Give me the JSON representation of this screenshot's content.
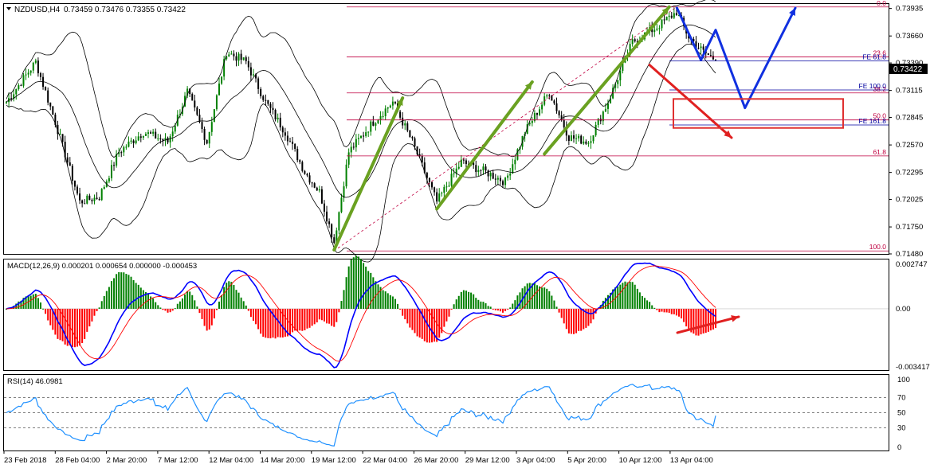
{
  "header": {
    "symbol": "NZDUSD,H4",
    "ohlc": "0.73459 0.73476 0.73355 0.73422"
  },
  "price_panel": {
    "y_ticks": [
      "0.73935",
      "0.73660",
      "0.73390",
      "0.73115",
      "0.72845",
      "0.72570",
      "0.72295",
      "0.72025",
      "0.71750",
      "0.71480"
    ],
    "current_price": "0.73422",
    "fib_levels": [
      {
        "label": "0.0",
        "price": 0.7395,
        "color": "#c00040"
      },
      {
        "label": "23.6",
        "price": 0.7345,
        "color": "#c00040"
      },
      {
        "label": "38.2",
        "price": 0.7309,
        "color": "#c00040"
      },
      {
        "label": "50.0",
        "price": 0.7282,
        "color": "#c00040"
      },
      {
        "label": "61.8",
        "price": 0.7246,
        "color": "#c00040"
      },
      {
        "label": "100.0",
        "price": 0.7151,
        "color": "#c00040"
      }
    ],
    "fe_levels": [
      {
        "label": "FE 61.8",
        "price": 0.7341,
        "color": "#0000a0"
      },
      {
        "label": "FE 100.0",
        "price": 0.7312,
        "color": "#0000a0"
      },
      {
        "label": "FE 161.8",
        "price": 0.7277,
        "color": "#0000a0"
      }
    ]
  },
  "macd_panel": {
    "label": "MACD(12,26,9) 0.000201 0.000654 0.000000 -0.000453",
    "y_ticks": [
      "0.002747",
      "0.00",
      "-0.003417"
    ]
  },
  "rsi_panel": {
    "label": "RSI(14) 46.0981",
    "y_ticks": [
      "70",
      "50",
      "30"
    ],
    "y_tick_values": [
      70,
      50,
      30
    ],
    "top_label": "100",
    "bottom_label": "0"
  },
  "x_axis": {
    "labels": [
      "23 Feb 2018",
      "28 Feb 04:00",
      "2 Mar 20:00",
      "7 Mar 12:00",
      "12 Mar 04:00",
      "14 Mar 20:00",
      "19 Mar 12:00",
      "22 Mar 04:00",
      "26 Mar 20:00",
      "29 Mar 12:00",
      "3 Apr 04:00",
      "5 Apr 20:00",
      "10 Apr 12:00",
      "13 Apr 04:00"
    ]
  },
  "colors": {
    "bull": "#008000",
    "bear": "#000000",
    "bollinger": "#000000",
    "macd_line": "#0000ff",
    "signal_line": "#ff0000",
    "hist_pos": "#008000",
    "hist_neg": "#ff0000",
    "rsi": "#1e90ff",
    "green_arrow": "#6aa121",
    "blue_arrow": "#1030e0",
    "red_arrow": "#e02020",
    "box": "#e03030"
  },
  "chart_data": {
    "type": "line",
    "title": "NZDUSD,H4",
    "series": [
      {
        "name": "NZDUSD",
        "x": [
          "23 Feb 2018",
          "28 Feb 04:00",
          "2 Mar 20:00",
          "7 Mar 12:00",
          "12 Mar 04:00",
          "14 Mar 20:00",
          "19 Mar 12:00",
          "22 Mar 04:00",
          "26 Mar 20:00",
          "29 Mar 12:00",
          "3 Apr 04:00",
          "5 Apr 20:00",
          "10 Apr 12:00",
          "13 Apr 04:00"
        ],
        "values": [
          0.73,
          0.72,
          0.724,
          0.727,
          0.733,
          0.727,
          0.716,
          0.725,
          0.728,
          0.723,
          0.727,
          0.727,
          0.738,
          0.7342
        ]
      }
    ],
    "anchors": [
      [
        0,
        0.73
      ],
      [
        12,
        0.734
      ],
      [
        20,
        0.728
      ],
      [
        30,
        0.72
      ],
      [
        38,
        0.7205
      ],
      [
        46,
        0.725
      ],
      [
        56,
        0.727
      ],
      [
        66,
        0.726
      ],
      [
        74,
        0.731
      ],
      [
        82,
        0.726
      ],
      [
        90,
        0.735
      ],
      [
        98,
        0.734
      ],
      [
        106,
        0.73
      ],
      [
        114,
        0.727
      ],
      [
        122,
        0.723
      ],
      [
        128,
        0.721
      ],
      [
        134,
        0.716
      ],
      [
        140,
        0.725
      ],
      [
        150,
        0.728
      ],
      [
        158,
        0.73
      ],
      [
        166,
        0.726
      ],
      [
        176,
        0.72
      ],
      [
        186,
        0.724
      ],
      [
        196,
        0.723
      ],
      [
        204,
        0.722
      ],
      [
        212,
        0.727
      ],
      [
        222,
        0.731
      ],
      [
        230,
        0.7265
      ],
      [
        238,
        0.726
      ],
      [
        246,
        0.73
      ],
      [
        256,
        0.736
      ],
      [
        266,
        0.7375
      ],
      [
        274,
        0.739
      ],
      [
        279,
        0.7365
      ],
      [
        285,
        0.735
      ],
      [
        290,
        0.7342
      ]
    ],
    "bar_count": 291,
    "ylim": [
      0.7148,
      0.7398
    ],
    "macd_ylim": [
      -0.003417,
      0.002747
    ],
    "rsi_ylim": [
      0,
      100
    ]
  }
}
